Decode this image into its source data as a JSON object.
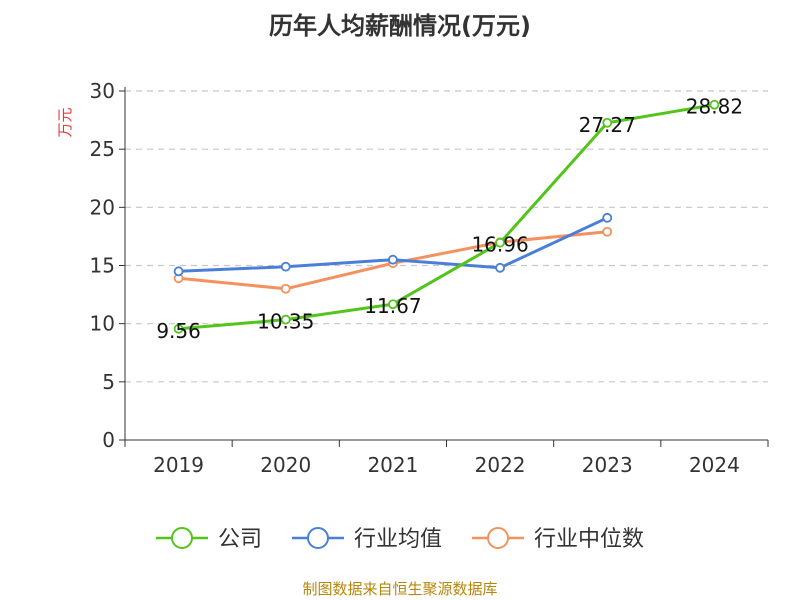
{
  "chart_data": {
    "type": "line",
    "title": "历年人均薪酬情况(万元)",
    "ylabel": "万元",
    "xlabel": "",
    "ylim": [
      0,
      30
    ],
    "yticks": [
      0,
      5,
      10,
      15,
      20,
      25,
      30
    ],
    "grid": true,
    "legend_position": "bottom",
    "categories": [
      "2019",
      "2020",
      "2021",
      "2022",
      "2023",
      "2024"
    ],
    "series": [
      {
        "name": "公司",
        "color": "#52c41a",
        "values": [
          9.56,
          10.35,
          11.67,
          16.96,
          27.27,
          28.82
        ],
        "labels": [
          "9.56",
          "10.35",
          "11.67",
          "16.96",
          "27.27",
          "28.82"
        ]
      },
      {
        "name": "行业均值",
        "color": "#4a7fd8",
        "values": [
          14.5,
          14.9,
          15.5,
          14.8,
          19.1,
          null
        ]
      },
      {
        "name": "行业中位数",
        "color": "#f4915f",
        "values": [
          13.9,
          13.0,
          15.2,
          17.0,
          17.9,
          null
        ]
      }
    ],
    "source": "制图数据来自恒生聚源数据库"
  }
}
